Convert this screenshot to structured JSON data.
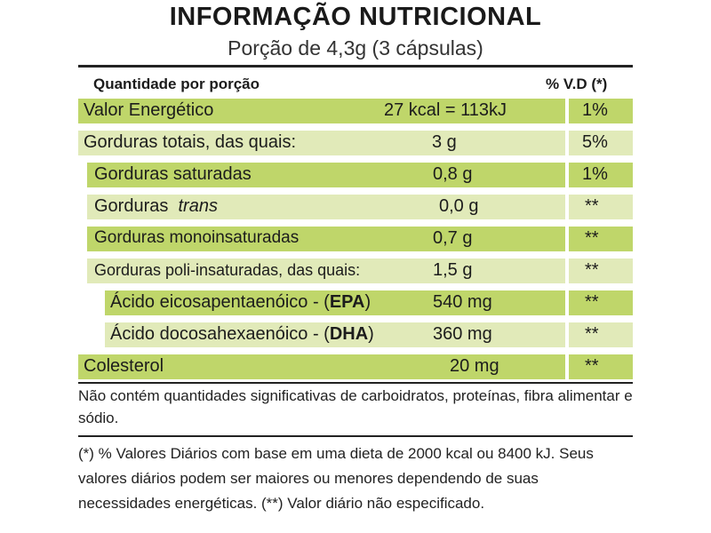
{
  "title": "INFORMAÇÃO NUTRICIONAL",
  "subtitle": "Porção de 4,3g (3 cápsulas)",
  "header": {
    "left": "Quantidade por porção",
    "right": "% V.D (*)"
  },
  "rows": [
    {
      "name": "Valor Energético",
      "amount": "27 kcal = 113kJ",
      "vd": "1%"
    },
    {
      "name": "Gorduras totais, das quais:",
      "amount": "3 g",
      "vd": "5%"
    },
    {
      "name": "Gorduras saturadas",
      "amount": "0,8 g",
      "vd": "1%"
    },
    {
      "name_pre": "Gorduras",
      "name_italic": "trans",
      "amount": "0,0 g",
      "vd": "**"
    },
    {
      "name": "Gorduras monoinsaturadas",
      "amount": "0,7 g",
      "vd": "**"
    },
    {
      "name": "Gorduras poli-insaturadas, das quais:",
      "amount": "1,5 g",
      "vd": "**"
    },
    {
      "name_pre": "Ácido eicosapentaenóico - (",
      "name_bold": "EPA",
      "name_post": ")",
      "amount": "540 mg",
      "vd": "**"
    },
    {
      "name_pre": "Ácido docosahexaenóico - (",
      "name_bold": "DHA",
      "name_post": ")",
      "amount": "360 mg",
      "vd": "**"
    },
    {
      "name": "Colesterol",
      "amount": "20 mg",
      "vd": "**"
    }
  ],
  "note1": "Não contém quantidades significativas de carboidratos, proteínas, fibra alimentar e sódio.",
  "note2": "(*) % Valores Diários com base em uma dieta de 2000 kcal ou 8400 kJ. Seus valores diários podem ser maiores ou menores dependendo de suas necessidades energéticas. (**) Valor diário não especificado.",
  "colors": {
    "dark_band": "#bfd66a",
    "light_band": "#e1eab9"
  }
}
